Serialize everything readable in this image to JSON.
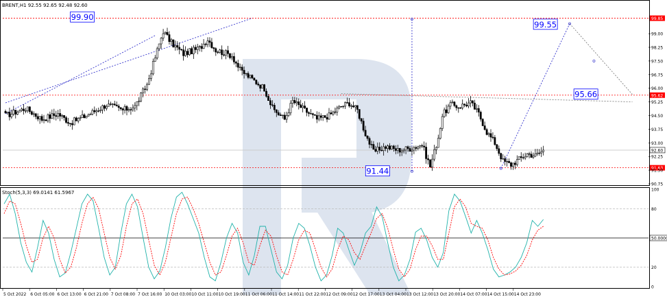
{
  "window": {
    "symbol_header": "BRENT,H1  92.55 92.65 92.48 92.60",
    "osc_header": "Stoch(5,3,3) 69.0141 61.5967"
  },
  "colors": {
    "background": "#ffffff",
    "candle_up": "#ffffff",
    "candle_down": "#000000",
    "dashed_red": "#ff0000",
    "dashed_blue": "#3333cc",
    "dashed_gray": "#808080",
    "stoch_main": "#20b2aa",
    "stoch_signal": "#ff0000",
    "label_box": "#0000ff",
    "watermark": "#dde4ef"
  },
  "chart_data": [
    {
      "type": "candlestick",
      "symbol": "BRENT",
      "timeframe": "H1",
      "ylim": [
        90.75,
        100.7
      ],
      "y_ticks": [
        "99.85",
        "99.00",
        "98.25",
        "97.50",
        "96.75",
        "96.00",
        "95.62",
        "95.25",
        "94.50",
        "93.75",
        "93.00",
        "92.60",
        "92.25",
        "91.63",
        "91.50",
        "90.75"
      ],
      "x_ticks": [
        "5 Oct 2022",
        "6 Oct 05:00",
        "6 Oct 13:00",
        "6 Oct 21:00",
        "7 Oct 08:00",
        "7 Oct 16:00",
        "10 Oct 03:00",
        "10 Oct 11:00",
        "10 Oct 19:00",
        "11 Oct 06:00",
        "11 Oct 14:00",
        "11 Oct 22:00",
        "12 Oct 09:00",
        "12 Oct 17:00",
        "13 Oct 04:00",
        "13 Oct 12:00",
        "13 Oct 20:00",
        "14 Oct 07:00",
        "14 Oct 15:00",
        "14 Oct 23:00"
      ],
      "anchors": [
        [
          0,
          94.5
        ],
        [
          10,
          94.9
        ],
        [
          18,
          94.3
        ],
        [
          26,
          94.6
        ],
        [
          32,
          94.1
        ],
        [
          40,
          94.5
        ],
        [
          50,
          95.1
        ],
        [
          58,
          94.8
        ],
        [
          64,
          95.0
        ],
        [
          70,
          96.2
        ],
        [
          74,
          97.7
        ],
        [
          78,
          99.15
        ],
        [
          82,
          98.5
        ],
        [
          88,
          97.9
        ],
        [
          96,
          98.2
        ],
        [
          100,
          98.7
        ],
        [
          104,
          98.1
        ],
        [
          112,
          97.8
        ],
        [
          116,
          97.0
        ],
        [
          122,
          96.5
        ],
        [
          128,
          96.0
        ],
        [
          132,
          94.9
        ],
        [
          138,
          94.3
        ],
        [
          142,
          95.3
        ],
        [
          148,
          94.8
        ],
        [
          154,
          94.3
        ],
        [
          160,
          94.5
        ],
        [
          166,
          95.0
        ],
        [
          170,
          95.2
        ],
        [
          174,
          94.8
        ],
        [
          178,
          93.5
        ],
        [
          182,
          92.5
        ],
        [
          188,
          92.8
        ],
        [
          194,
          92.6
        ],
        [
          200,
          92.7
        ],
        [
          206,
          92.9
        ],
        [
          210,
          91.7
        ],
        [
          214,
          93.3
        ],
        [
          216,
          94.5
        ],
        [
          220,
          95.1
        ],
        [
          224,
          95.0
        ],
        [
          230,
          95.2
        ],
        [
          234,
          94.6
        ],
        [
          238,
          93.6
        ],
        [
          242,
          93.0
        ],
        [
          246,
          92.0
        ],
        [
          250,
          91.8
        ],
        [
          254,
          92.1
        ],
        [
          258,
          92.4
        ],
        [
          262,
          92.3
        ],
        [
          266,
          92.6
        ]
      ],
      "candles_count": 267,
      "last_price": 92.6,
      "levels": [
        {
          "price": 99.85,
          "label": "99.85",
          "color": "#ff0000"
        },
        {
          "price": 95.62,
          "label": "95.62",
          "color": "#ff0000"
        },
        {
          "price": 91.63,
          "label": "91.63",
          "color": "#ff0000"
        }
      ],
      "trend_lines": [
        {
          "from": [
            0,
            95.2
          ],
          "to": [
            122,
            99.85
          ],
          "color": "#3333cc"
        },
        {
          "from": [
            0,
            94.6
          ],
          "to": [
            74,
            98.9
          ],
          "color": "#3333cc"
        },
        {
          "from": [
            166,
            95.7
          ],
          "to": [
            310,
            95.25
          ],
          "color": "#808080"
        },
        {
          "from": [
            201,
            99.8
          ],
          "to": [
            201,
            91.44
          ],
          "color": "#3333cc"
        },
        {
          "from": [
            245,
            91.6
          ],
          "to": [
            279,
            99.55
          ],
          "color": "#3333cc"
        },
        {
          "from": [
            279,
            99.55
          ],
          "to": [
            310,
            95.66
          ],
          "color": "#808080"
        }
      ],
      "annotations": [
        {
          "text": "99.90",
          "bar": 38,
          "price": 99.9
        },
        {
          "text": "91.44",
          "bar": 184,
          "price": 91.44
        },
        {
          "text": "99.55",
          "bar": 267,
          "price": 99.5
        },
        {
          "text": "95.66",
          "bar": 287,
          "price": 95.66
        }
      ]
    },
    {
      "type": "line",
      "name": "Stoch(5,3,3)",
      "ylim": [
        0,
        100
      ],
      "y_ticks": [
        "100",
        "80",
        "50.0000",
        "20",
        "0"
      ],
      "levels": [
        80,
        50,
        20
      ],
      "series": [
        {
          "name": "Stoch main",
          "color": "#20b2aa",
          "values": [
            85,
            95,
            75,
            45,
            25,
            15,
            40,
            68,
            55,
            28,
            10,
            14,
            35,
            60,
            85,
            95,
            88,
            60,
            30,
            12,
            20,
            55,
            85,
            95,
            82,
            50,
            20,
            8,
            16,
            40,
            70,
            92,
            97,
            85,
            70,
            55,
            30,
            10,
            6,
            25,
            50,
            65,
            55,
            25,
            12,
            32,
            62,
            62,
            38,
            15,
            8,
            22,
            50,
            65,
            60,
            42,
            20,
            6,
            12,
            32,
            60,
            55,
            38,
            22,
            35,
            55,
            62,
            82,
            72,
            45,
            20,
            6,
            12,
            28,
            56,
            60,
            48,
            30,
            20,
            35,
            78,
            95,
            88,
            72,
            55,
            68,
            55,
            38,
            18,
            10,
            12,
            15,
            20,
            30,
            45,
            68,
            62,
            69
          ]
        },
        {
          "name": "Stoch signal",
          "color": "#ff0000",
          "values": [
            75,
            88,
            85,
            65,
            42,
            25,
            28,
            50,
            62,
            50,
            28,
            14,
            20,
            40,
            65,
            85,
            92,
            80,
            55,
            30,
            18,
            32,
            62,
            85,
            90,
            75,
            48,
            22,
            12,
            25,
            50,
            75,
            90,
            92,
            80,
            65,
            45,
            25,
            12,
            15,
            32,
            52,
            60,
            45,
            25,
            22,
            42,
            58,
            52,
            32,
            15,
            12,
            28,
            48,
            58,
            55,
            38,
            20,
            10,
            18,
            38,
            52,
            48,
            35,
            28,
            42,
            55,
            70,
            75,
            60,
            38,
            18,
            10,
            18,
            38,
            52,
            52,
            42,
            28,
            28,
            55,
            82,
            90,
            82,
            65,
            62,
            60,
            48,
            30,
            18,
            12,
            13,
            16,
            22,
            32,
            48,
            58,
            62
          ]
        }
      ],
      "header": "Stoch(5,3,3) 69.0141 61.5967"
    }
  ]
}
